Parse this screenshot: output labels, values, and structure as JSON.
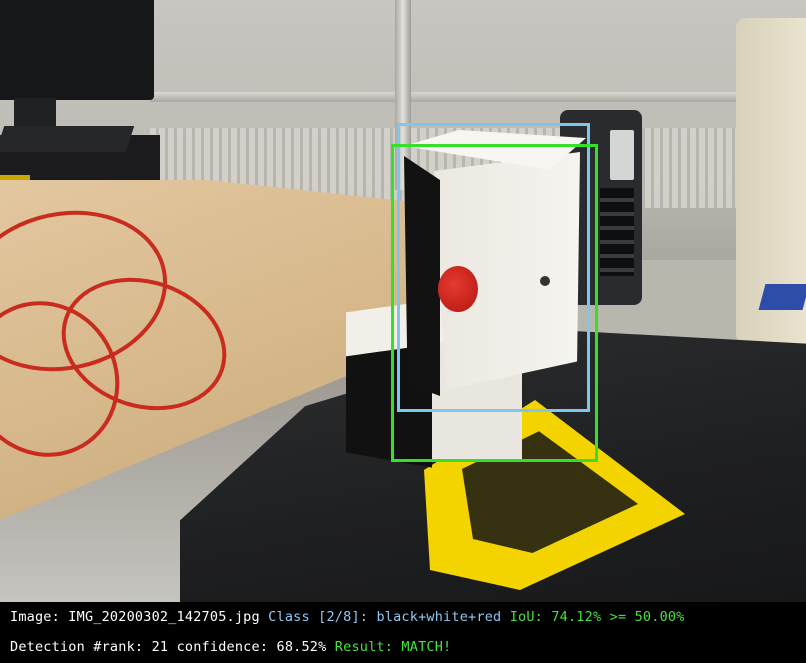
{
  "image_label": "Image:",
  "image_name": "IMG_20200302_142705.jpg",
  "class_label": "Class",
  "class_index": "[2/8]:",
  "class_name": "black+white+red",
  "iou_text": "IoU: 74.12% >= 50.00%",
  "detection_rank_text": "Detection #rank: 21",
  "confidence_text": "confidence: 68.52%",
  "result_text": "Result: MATCH!",
  "colors": {
    "ground_truth_box": "#7fc6ef",
    "prediction_box": "#36e02a",
    "class_text": "#8ec8f2",
    "result_text": "#44e23b"
  }
}
